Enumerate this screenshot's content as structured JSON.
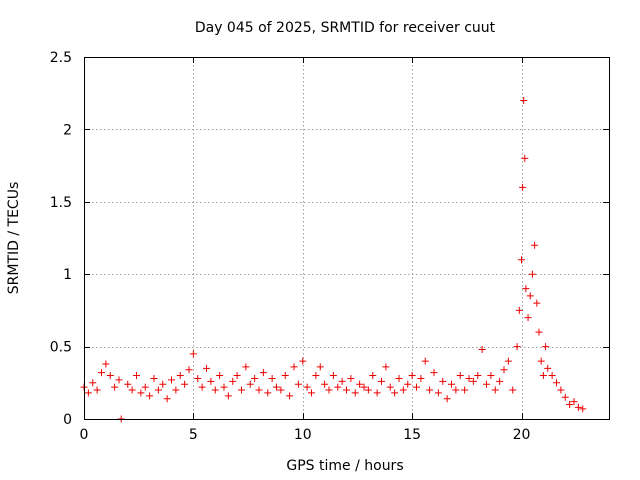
{
  "chart_data": {
    "type": "scatter",
    "title": "Day 045 of 2025, SRMTID for receiver cuut",
    "xlabel": "GPS time / hours",
    "ylabel": "SRMTID / TECUs",
    "xlim": [
      0,
      24
    ],
    "ylim": [
      0,
      2.5
    ],
    "xticks": [
      0,
      5,
      10,
      15,
      20
    ],
    "xtick_labels": [
      "0",
      "5",
      "10",
      "15",
      "20"
    ],
    "yticks": [
      0,
      0.5,
      1,
      1.5,
      2,
      2.5
    ],
    "ytick_labels": [
      "0",
      "0.5",
      "1",
      "1.5",
      "2",
      "2.5"
    ],
    "grid": true,
    "marker": "+",
    "color": "#ee0000",
    "series": [
      {
        "name": "SRMTID",
        "x": [
          0.0,
          0.2,
          0.4,
          0.6,
          0.8,
          1.0,
          1.2,
          1.4,
          1.6,
          1.7,
          2.0,
          2.2,
          2.4,
          2.6,
          2.8,
          3.0,
          3.2,
          3.4,
          3.6,
          3.8,
          4.0,
          4.2,
          4.4,
          4.6,
          4.8,
          5.0,
          5.2,
          5.4,
          5.6,
          5.8,
          6.0,
          6.2,
          6.4,
          6.6,
          6.8,
          7.0,
          7.2,
          7.4,
          7.6,
          7.8,
          8.0,
          8.2,
          8.4,
          8.6,
          8.8,
          9.0,
          9.2,
          9.4,
          9.6,
          9.8,
          10.0,
          10.2,
          10.4,
          10.6,
          10.8,
          11.0,
          11.2,
          11.4,
          11.6,
          11.8,
          12.0,
          12.2,
          12.4,
          12.6,
          12.8,
          13.0,
          13.2,
          13.4,
          13.6,
          13.8,
          14.0,
          14.2,
          14.4,
          14.6,
          14.8,
          15.0,
          15.2,
          15.4,
          15.6,
          15.8,
          16.0,
          16.2,
          16.4,
          16.6,
          16.8,
          17.0,
          17.2,
          17.4,
          17.6,
          17.8,
          18.0,
          18.2,
          18.4,
          18.6,
          18.8,
          19.0,
          19.2,
          19.4,
          19.6,
          19.8,
          19.9,
          20.0,
          20.05,
          20.1,
          20.15,
          20.2,
          20.3,
          20.4,
          20.5,
          20.6,
          20.7,
          20.8,
          20.9,
          21.0,
          21.1,
          21.2,
          21.4,
          21.6,
          21.8,
          22.0,
          22.2,
          22.4,
          22.6,
          22.8
        ],
        "y": [
          0.22,
          0.18,
          0.25,
          0.2,
          0.32,
          0.38,
          0.3,
          0.22,
          0.27,
          0.0,
          0.24,
          0.2,
          0.3,
          0.18,
          0.22,
          0.16,
          0.28,
          0.2,
          0.24,
          0.14,
          0.27,
          0.2,
          0.3,
          0.24,
          0.34,
          0.45,
          0.28,
          0.22,
          0.35,
          0.26,
          0.2,
          0.3,
          0.22,
          0.16,
          0.26,
          0.3,
          0.2,
          0.36,
          0.24,
          0.28,
          0.2,
          0.32,
          0.18,
          0.28,
          0.22,
          0.2,
          0.3,
          0.16,
          0.36,
          0.24,
          0.4,
          0.22,
          0.18,
          0.3,
          0.36,
          0.24,
          0.2,
          0.3,
          0.22,
          0.26,
          0.2,
          0.28,
          0.18,
          0.24,
          0.22,
          0.2,
          0.3,
          0.18,
          0.26,
          0.36,
          0.22,
          0.18,
          0.28,
          0.2,
          0.24,
          0.3,
          0.22,
          0.28,
          0.4,
          0.2,
          0.32,
          0.18,
          0.26,
          0.14,
          0.24,
          0.2,
          0.3,
          0.2,
          0.28,
          0.26,
          0.3,
          0.48,
          0.24,
          0.3,
          0.2,
          0.26,
          0.34,
          0.4,
          0.2,
          0.5,
          0.75,
          1.1,
          1.6,
          2.2,
          1.8,
          0.9,
          0.7,
          0.85,
          1.0,
          1.2,
          0.8,
          0.6,
          0.4,
          0.3,
          0.5,
          0.35,
          0.3,
          0.25,
          0.2,
          0.15,
          0.1,
          0.12,
          0.08,
          0.07
        ]
      }
    ]
  }
}
